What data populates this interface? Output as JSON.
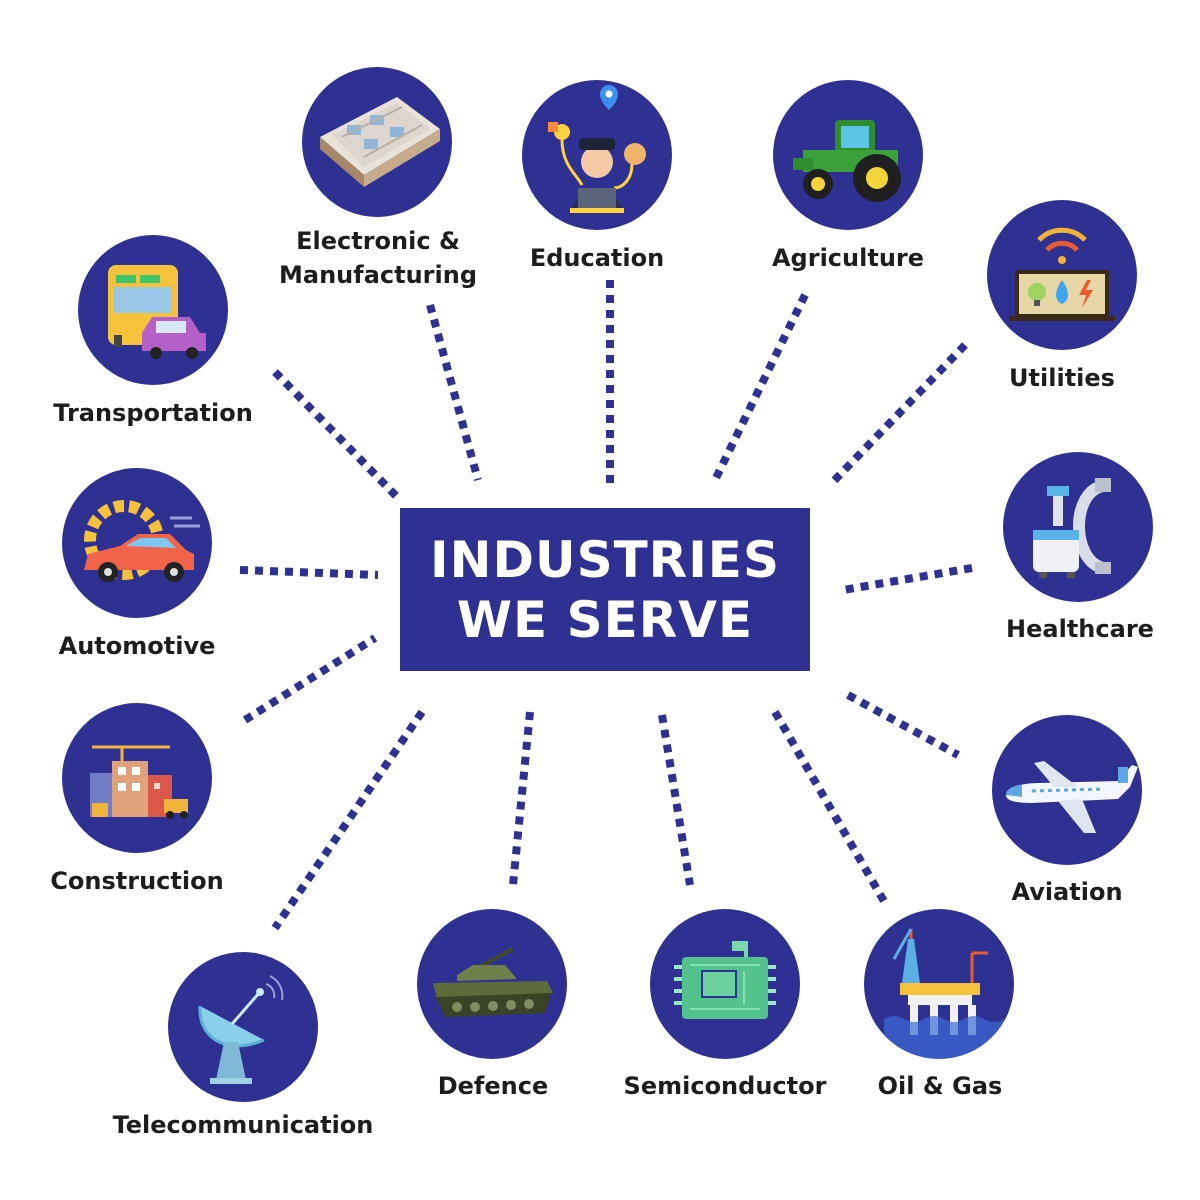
{
  "title": {
    "line1": "INDUSTRIES",
    "line2": "WE SERVE"
  },
  "colors": {
    "primary": "#2e3192",
    "text": "#1d1d1d",
    "center_text": "#ffffff",
    "background": "#ffffff"
  },
  "industries": [
    {
      "key": "electronic-manufacturing",
      "label_line1": "Electronic &",
      "label_line2": "Manufacturing",
      "icon": "factory-floor-icon"
    },
    {
      "key": "education",
      "label": "Education",
      "icon": "student-laptop-icon"
    },
    {
      "key": "agriculture",
      "label": "Agriculture",
      "icon": "tractor-icon"
    },
    {
      "key": "utilities",
      "label": "Utilities",
      "icon": "utilities-meter-icon"
    },
    {
      "key": "transportation",
      "label": "Transportation",
      "icon": "bus-and-car-icon"
    },
    {
      "key": "automotive",
      "label": "Automotive",
      "icon": "car-gear-icon"
    },
    {
      "key": "healthcare",
      "label": "Healthcare",
      "icon": "medical-scanner-icon"
    },
    {
      "key": "construction",
      "label": "Construction",
      "icon": "buildings-crane-icon"
    },
    {
      "key": "aviation",
      "label": "Aviation",
      "icon": "airplane-icon"
    },
    {
      "key": "telecommunication",
      "label": "Telecommunication",
      "icon": "satellite-dish-icon"
    },
    {
      "key": "defence",
      "label": "Defence",
      "icon": "tank-icon"
    },
    {
      "key": "semiconductor",
      "label": "Semiconductor",
      "icon": "circuit-board-icon"
    },
    {
      "key": "oil-gas",
      "label": "Oil & Gas",
      "icon": "oil-rig-icon"
    }
  ]
}
